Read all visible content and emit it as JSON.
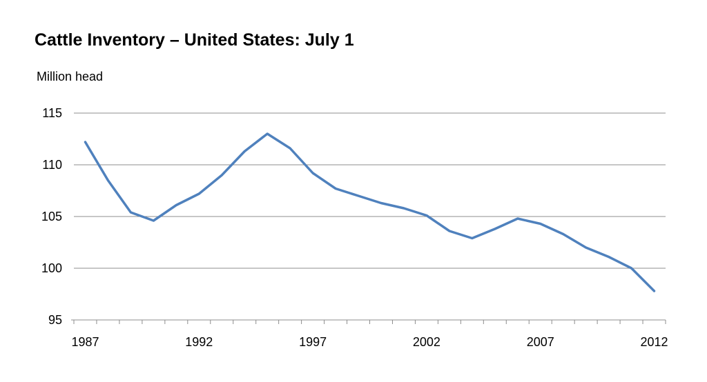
{
  "chart_data": {
    "type": "line",
    "title": "Cattle Inventory – United States: July 1",
    "ylabel": "Million head",
    "xlabel": "",
    "ylim": [
      95,
      115
    ],
    "yticks": [
      95,
      100,
      105,
      110,
      115
    ],
    "xlim": [
      1986.5,
      2012.5
    ],
    "xtick_labels": [
      1987,
      1992,
      1997,
      2002,
      2007,
      2012
    ],
    "grid": "horizontal",
    "legend": "none",
    "line_color": "#4F81BD",
    "series": [
      {
        "x": [
          1987,
          1988,
          1989,
          1990,
          1991,
          1992,
          1993,
          1994,
          1995,
          1996,
          1997,
          1998,
          1999,
          2000,
          2001,
          2002,
          2003,
          2004,
          2005,
          2006,
          2007,
          2008,
          2009,
          2010,
          2011,
          2012
        ],
        "values": [
          112.2,
          108.5,
          105.4,
          104.6,
          106.1,
          107.2,
          109.0,
          111.3,
          113.0,
          111.6,
          109.2,
          107.7,
          107.0,
          106.3,
          105.8,
          105.1,
          103.6,
          102.9,
          103.8,
          104.8,
          104.3,
          103.3,
          102.0,
          101.1,
          100.0,
          97.8
        ]
      }
    ]
  }
}
